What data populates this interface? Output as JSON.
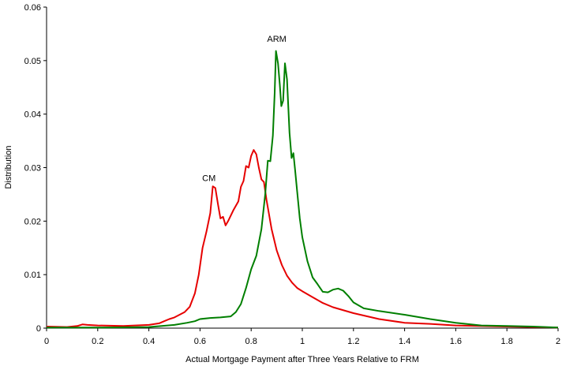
{
  "chart_data": {
    "type": "line",
    "title": "",
    "xlabel": "Actual Mortgage Payment after Three Years Relative to FRM",
    "ylabel": "Distribution",
    "xlim": [
      0,
      2
    ],
    "ylim": [
      0,
      0.06
    ],
    "x_ticks": [
      "0",
      "0.2",
      "0.4",
      "0.6",
      "0.8",
      "1",
      "1.2",
      "1.4",
      "1.6",
      "1.8",
      "2"
    ],
    "y_ticks": [
      "0",
      "0.01",
      "0.02",
      "0.03",
      "0.04",
      "0.05",
      "0.06"
    ],
    "grid": false,
    "legend": "none",
    "series": [
      {
        "name": "CM",
        "color": "#e60000",
        "label_at": [
          0.635,
          0.0275
        ],
        "points": [
          [
            0.0,
            0.0003
          ],
          [
            0.08,
            0.0002
          ],
          [
            0.12,
            0.0004
          ],
          [
            0.14,
            0.0007
          ],
          [
            0.16,
            0.0006
          ],
          [
            0.2,
            0.0005
          ],
          [
            0.3,
            0.0004
          ],
          [
            0.4,
            0.0006
          ],
          [
            0.44,
            0.0009
          ],
          [
            0.46,
            0.0013
          ],
          [
            0.48,
            0.0017
          ],
          [
            0.5,
            0.002
          ],
          [
            0.52,
            0.0025
          ],
          [
            0.54,
            0.003
          ],
          [
            0.56,
            0.004
          ],
          [
            0.58,
            0.0065
          ],
          [
            0.595,
            0.01
          ],
          [
            0.61,
            0.015
          ],
          [
            0.625,
            0.018
          ],
          [
            0.64,
            0.0215
          ],
          [
            0.65,
            0.0265
          ],
          [
            0.66,
            0.0262
          ],
          [
            0.67,
            0.0232
          ],
          [
            0.68,
            0.0205
          ],
          [
            0.69,
            0.0208
          ],
          [
            0.7,
            0.0192
          ],
          [
            0.71,
            0.02
          ],
          [
            0.73,
            0.022
          ],
          [
            0.75,
            0.0237
          ],
          [
            0.76,
            0.0264
          ],
          [
            0.77,
            0.0275
          ],
          [
            0.78,
            0.0303
          ],
          [
            0.79,
            0.03
          ],
          [
            0.8,
            0.0322
          ],
          [
            0.81,
            0.0333
          ],
          [
            0.82,
            0.0325
          ],
          [
            0.83,
            0.03
          ],
          [
            0.84,
            0.0278
          ],
          [
            0.85,
            0.0273
          ],
          [
            0.86,
            0.024
          ],
          [
            0.88,
            0.0185
          ],
          [
            0.9,
            0.0145
          ],
          [
            0.92,
            0.0118
          ],
          [
            0.94,
            0.0098
          ],
          [
            0.96,
            0.0085
          ],
          [
            0.98,
            0.0075
          ],
          [
            1.0,
            0.0069
          ],
          [
            1.04,
            0.0058
          ],
          [
            1.08,
            0.0047
          ],
          [
            1.12,
            0.0039
          ],
          [
            1.2,
            0.0028
          ],
          [
            1.3,
            0.0017
          ],
          [
            1.4,
            0.001
          ],
          [
            1.5,
            0.0008
          ],
          [
            1.6,
            0.0005
          ],
          [
            1.8,
            0.0003
          ],
          [
            2.0,
            0.0001
          ]
        ]
      },
      {
        "name": "ARM",
        "color": "#007f00",
        "label_at": [
          0.9,
          0.0535
        ],
        "points": [
          [
            0.0,
            0.0001
          ],
          [
            0.2,
            0.0001
          ],
          [
            0.4,
            0.0002
          ],
          [
            0.45,
            0.0004
          ],
          [
            0.5,
            0.0006
          ],
          [
            0.55,
            0.001
          ],
          [
            0.58,
            0.0013
          ],
          [
            0.6,
            0.0017
          ],
          [
            0.64,
            0.0019
          ],
          [
            0.68,
            0.002
          ],
          [
            0.72,
            0.0022
          ],
          [
            0.74,
            0.003
          ],
          [
            0.76,
            0.0045
          ],
          [
            0.78,
            0.0075
          ],
          [
            0.8,
            0.011
          ],
          [
            0.82,
            0.0135
          ],
          [
            0.84,
            0.0185
          ],
          [
            0.855,
            0.025
          ],
          [
            0.865,
            0.0313
          ],
          [
            0.875,
            0.0312
          ],
          [
            0.885,
            0.036
          ],
          [
            0.892,
            0.044
          ],
          [
            0.897,
            0.0518
          ],
          [
            0.905,
            0.0495
          ],
          [
            0.912,
            0.0455
          ],
          [
            0.918,
            0.0415
          ],
          [
            0.925,
            0.0425
          ],
          [
            0.932,
            0.0495
          ],
          [
            0.94,
            0.0465
          ],
          [
            0.95,
            0.0365
          ],
          [
            0.958,
            0.0318
          ],
          [
            0.965,
            0.0327
          ],
          [
            0.972,
            0.0295
          ],
          [
            0.98,
            0.0255
          ],
          [
            0.99,
            0.0205
          ],
          [
            1.0,
            0.017
          ],
          [
            1.02,
            0.0125
          ],
          [
            1.04,
            0.0095
          ],
          [
            1.06,
            0.0082
          ],
          [
            1.08,
            0.0068
          ],
          [
            1.1,
            0.0067
          ],
          [
            1.12,
            0.0072
          ],
          [
            1.14,
            0.0074
          ],
          [
            1.16,
            0.007
          ],
          [
            1.18,
            0.006
          ],
          [
            1.2,
            0.0048
          ],
          [
            1.24,
            0.0037
          ],
          [
            1.3,
            0.0032
          ],
          [
            1.4,
            0.0025
          ],
          [
            1.5,
            0.0017
          ],
          [
            1.6,
            0.001
          ],
          [
            1.7,
            0.0005
          ],
          [
            1.8,
            0.0004
          ],
          [
            1.9,
            0.0003
          ],
          [
            2.0,
            0.0001
          ]
        ]
      }
    ]
  }
}
